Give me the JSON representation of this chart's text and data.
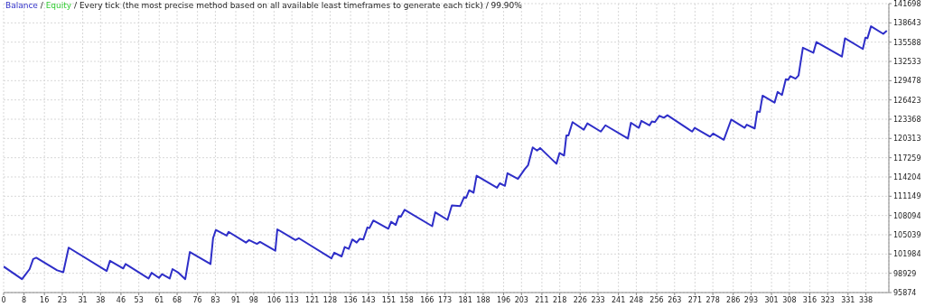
{
  "chart_data": {
    "type": "line",
    "title": "Balance / Equity / Every tick (the most precise method based on all available least timeframes to generate each tick) / 99.90%",
    "x": [
      0,
      7.2,
      8.7,
      10.2,
      11.6,
      12.8,
      21.0,
      23.4,
      25.5,
      40.4,
      41.7,
      46.9,
      47.8,
      56.8,
      58.0,
      60.9,
      62.1,
      65.1,
      66.2,
      68.6,
      71.2,
      73.0,
      81.1,
      82.1,
      83.2,
      87.4,
      88.2,
      95.0,
      96.2,
      99.3,
      100.5,
      106.5,
      107.3,
      114.4,
      115.7,
      128.5,
      129.6,
      132.5,
      133.7,
      135.3,
      136.7,
      138.4,
      139.6,
      141.0,
      142.6,
      143.4,
      144.9,
      150.8,
      151.9,
      153.7,
      154.9,
      155.7,
      157.2,
      168.0,
      169.2,
      174.0,
      175.7,
      179.0,
      180.5,
      181.3,
      182.5,
      184.2,
      185.4,
      193.4,
      194.5,
      196.5,
      197.5,
      201.6,
      204.2,
      205.6,
      207.4,
      209.1,
      210.3,
      216.7,
      217.9,
      219.7,
      220.6,
      221.4,
      223.0,
      227.4,
      228.8,
      234.1,
      235.9,
      244.7,
      245.9,
      249.0,
      250.0,
      253.2,
      254.1,
      255.3,
      257.0,
      258.8,
      260.2,
      269.9,
      270.9,
      276.9,
      278.1,
      282.3,
      285.2,
      290.5,
      291.3,
      294.4,
      295.4,
      296.4,
      297.5,
      302.2,
      303.4,
      305.1,
      306.6,
      307.5,
      308.4,
      310.4,
      311.6,
      313.3,
      317.4,
      318.6,
      328.6,
      329.8,
      336.8,
      337.8,
      338.6,
      340.0,
      344.8,
      346.2
    ],
    "series": [
      {
        "color": "#2e2ec8",
        "values": [
          100000,
          98000,
          98800,
          99600,
          101200,
          101400,
          99400,
          99100,
          103000,
          99300,
          100900,
          99700,
          100400,
          98100,
          99000,
          98200,
          98800,
          98100,
          99600,
          99000,
          98000,
          102300,
          100400,
          104500,
          105800,
          104900,
          105500,
          103800,
          104200,
          103600,
          103900,
          102500,
          105900,
          104200,
          104500,
          101300,
          102200,
          101600,
          103100,
          102800,
          104300,
          103800,
          104400,
          104300,
          106200,
          106100,
          107300,
          106000,
          107100,
          106600,
          108000,
          107900,
          109000,
          106400,
          108600,
          107400,
          109700,
          109600,
          111000,
          110900,
          112100,
          111700,
          114400,
          112500,
          113200,
          112800,
          114800,
          113900,
          115400,
          116100,
          118900,
          118400,
          118800,
          116300,
          118000,
          117600,
          120800,
          120800,
          122900,
          121700,
          122700,
          121400,
          122400,
          120300,
          122800,
          122000,
          123100,
          122400,
          123000,
          122900,
          123900,
          123600,
          124000,
          121400,
          122000,
          120600,
          121100,
          120100,
          123300,
          122000,
          122500,
          121900,
          124600,
          124500,
          127100,
          126000,
          127700,
          127200,
          129700,
          129600,
          130200,
          129800,
          130300,
          134700,
          133900,
          135600,
          133300,
          136200,
          134500,
          136300,
          136200,
          138100,
          136900,
          137400
        ]
      },
      {
        "color": "#33cc33",
        "values": [
          null,
          null,
          null,
          null,
          null,
          null,
          null,
          null,
          null,
          null,
          null,
          null,
          null,
          null,
          null,
          null,
          null,
          null,
          null,
          null,
          null,
          null,
          null,
          null,
          null,
          null,
          null,
          null,
          null,
          null,
          null,
          null,
          null,
          null,
          null,
          null,
          null,
          null,
          null,
          null,
          null,
          null,
          null,
          null,
          null,
          null,
          null,
          null,
          null,
          null,
          null,
          null,
          null,
          null,
          null,
          null,
          null,
          null,
          null,
          null,
          null,
          null,
          null,
          null,
          null,
          null,
          null,
          null,
          null,
          null,
          null,
          null,
          null,
          null,
          null,
          null,
          null,
          null,
          null,
          null,
          null,
          null,
          null,
          null,
          null,
          null,
          null,
          null,
          null,
          null,
          null,
          null,
          null,
          null,
          null,
          null,
          null,
          null,
          null,
          null,
          null,
          null,
          null,
          null,
          null,
          null,
          null,
          null,
          null,
          null,
          null,
          null,
          null,
          null,
          null,
          null,
          null,
          null,
          null,
          null,
          null,
          null,
          null,
          null
        ]
      }
    ],
    "xlim": [
      0,
      347
    ],
    "xticks": [
      0,
      8,
      16,
      23,
      31,
      38,
      46,
      53,
      61,
      68,
      76,
      83,
      91,
      98,
      106,
      113,
      121,
      128,
      136,
      143,
      151,
      158,
      166,
      173,
      181,
      188,
      196,
      203,
      211,
      218,
      226,
      233,
      241,
      248,
      256,
      263,
      271,
      278,
      286,
      293,
      301,
      308,
      316,
      323,
      331,
      338
    ],
    "ylim": [
      95874,
      141698
    ],
    "yticks": [
      95874,
      98929,
      101984,
      105039,
      108094,
      111149,
      114204,
      117259,
      120313,
      123368,
      126423,
      129478,
      132533,
      135588,
      138643,
      141698
    ],
    "grid": true,
    "marker": "none",
    "line_style": "solid"
  }
}
